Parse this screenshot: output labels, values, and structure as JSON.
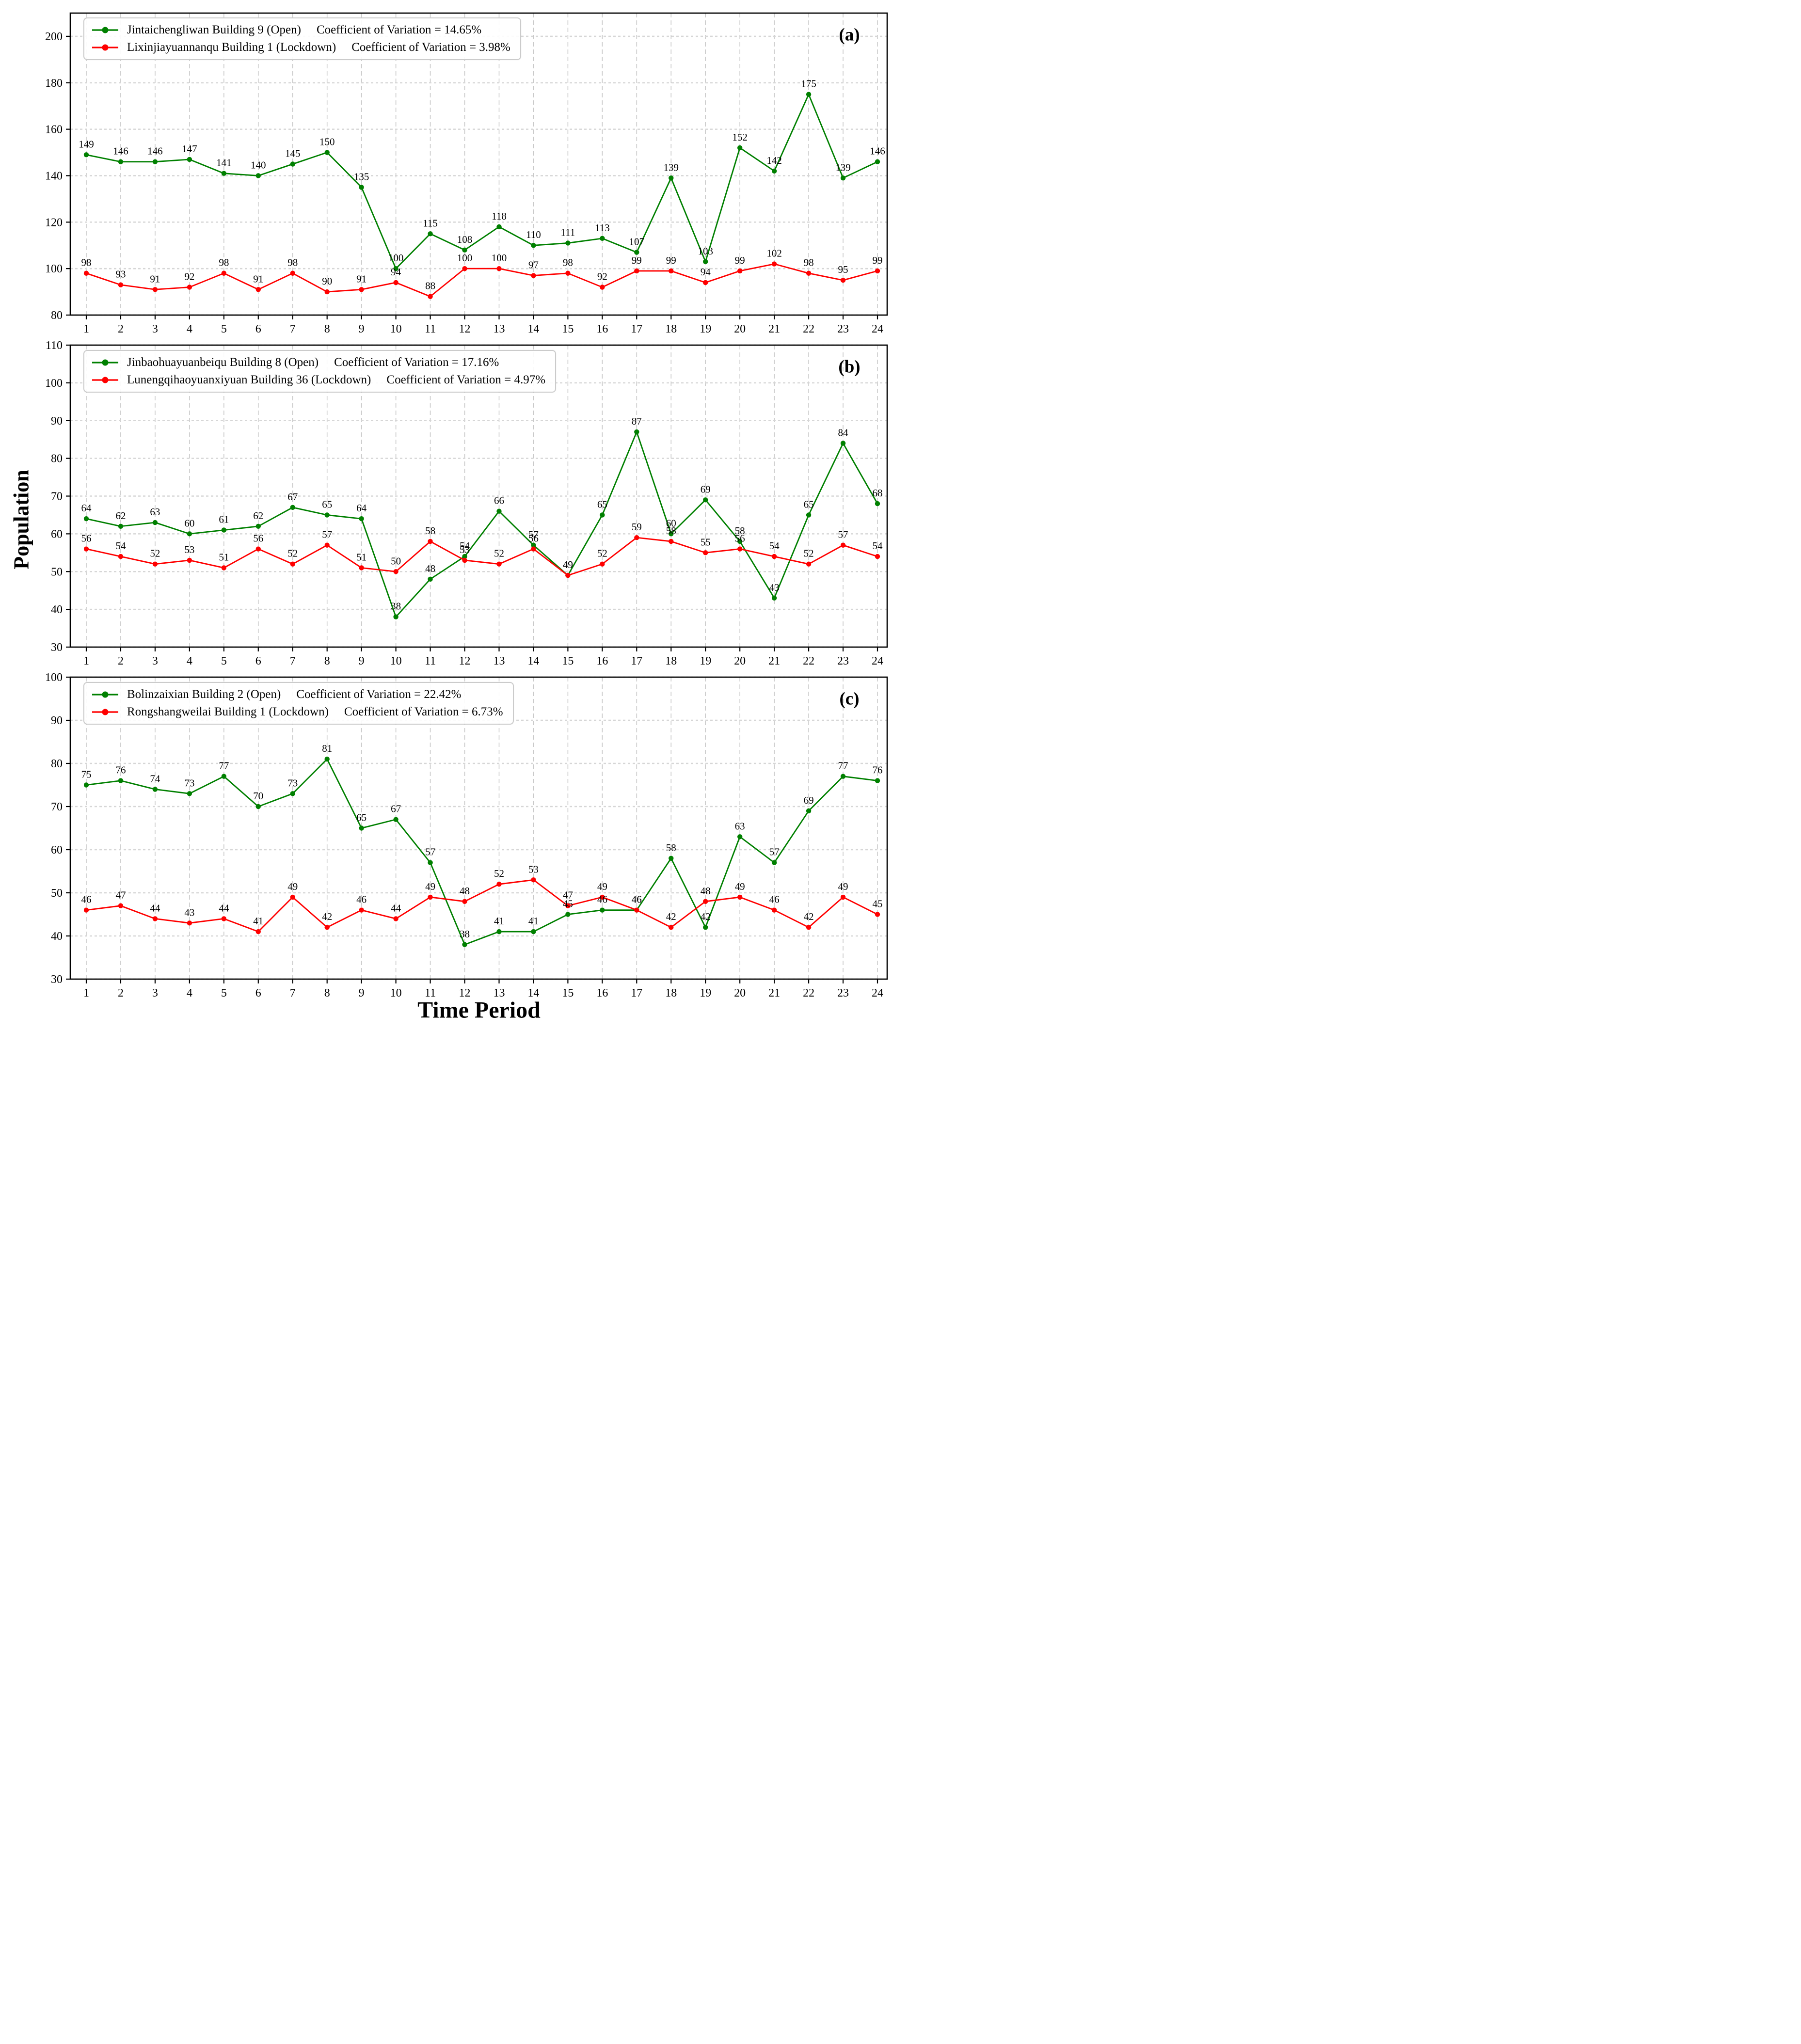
{
  "figure": {
    "ylabel": "Population",
    "xlabel": "Time Period",
    "background": "#ffffff",
    "colors": {
      "open_series": "#008000",
      "lockdown_series": "#ff0000",
      "grid_vertical": "#c9c9c9",
      "grid_horizontal": "#d6d6d6",
      "spine": "#000000",
      "text": "#000000",
      "legend_border": "#cbcbcb"
    }
  },
  "chart_data": [
    {
      "type": "line",
      "panel_label": "(a)",
      "categories": [
        "1",
        "2",
        "3",
        "4",
        "5",
        "6",
        "7",
        "8",
        "9",
        "10",
        "11",
        "12",
        "13",
        "14",
        "15",
        "16",
        "17",
        "18",
        "19",
        "20",
        "21",
        "22",
        "23",
        "24"
      ],
      "ylim": [
        80,
        210
      ],
      "yticks": [
        80,
        100,
        120,
        140,
        160,
        180,
        200
      ],
      "grid": true,
      "legend_position": "upper-left",
      "series": [
        {
          "name": "Jintaichengliwan Building 9 (Open)",
          "cv_label": "Coefficient of Variation = 14.65%",
          "color": "#008000",
          "values": [
            149,
            146,
            146,
            147,
            141,
            140,
            145,
            150,
            135,
            100,
            115,
            108,
            118,
            110,
            111,
            113,
            107,
            139,
            103,
            152,
            142,
            175,
            139,
            146
          ]
        },
        {
          "name": "Lixinjiayuannanqu Building 1 (Lockdown)",
          "cv_label": "Coefficient of Variation = 3.98%",
          "color": "#ff0000",
          "values": [
            98,
            93,
            91,
            92,
            98,
            91,
            98,
            90,
            91,
            94,
            88,
            100,
            100,
            97,
            98,
            92,
            99,
            99,
            94,
            99,
            102,
            98,
            95,
            99
          ]
        }
      ]
    },
    {
      "type": "line",
      "panel_label": "(b)",
      "categories": [
        "1",
        "2",
        "3",
        "4",
        "5",
        "6",
        "7",
        "8",
        "9",
        "10",
        "11",
        "12",
        "13",
        "14",
        "15",
        "16",
        "17",
        "18",
        "19",
        "20",
        "21",
        "22",
        "23",
        "24"
      ],
      "ylim": [
        30,
        110
      ],
      "yticks": [
        30,
        40,
        50,
        60,
        70,
        80,
        90,
        100,
        110
      ],
      "grid": true,
      "legend_position": "upper-left",
      "series": [
        {
          "name": "Jinbaohuayuanbeiqu Building 8 (Open)",
          "cv_label": "Coefficient of Variation = 17.16%",
          "color": "#008000",
          "values": [
            64,
            62,
            63,
            60,
            61,
            62,
            67,
            65,
            64,
            38,
            48,
            54,
            66,
            57,
            49,
            65,
            87,
            60,
            69,
            58,
            43,
            65,
            84,
            68
          ]
        },
        {
          "name": "Lunengqihaoyuanxiyuan Building 36 (Lockdown)",
          "cv_label": "Coefficient of Variation = 4.97%",
          "color": "#ff0000",
          "values": [
            56,
            54,
            52,
            53,
            51,
            56,
            52,
            57,
            51,
            50,
            58,
            53,
            52,
            56,
            49,
            52,
            59,
            58,
            55,
            56,
            54,
            52,
            57,
            54
          ]
        }
      ]
    },
    {
      "type": "line",
      "panel_label": "(c)",
      "categories": [
        "1",
        "2",
        "3",
        "4",
        "5",
        "6",
        "7",
        "8",
        "9",
        "10",
        "11",
        "12",
        "13",
        "14",
        "15",
        "16",
        "17",
        "18",
        "19",
        "20",
        "21",
        "22",
        "23",
        "24"
      ],
      "ylim": [
        30,
        100
      ],
      "yticks": [
        30,
        40,
        50,
        60,
        70,
        80,
        90,
        100
      ],
      "grid": true,
      "legend_position": "upper-left",
      "series": [
        {
          "name": "Bolinzaixian Building 2 (Open)",
          "cv_label": "Coefficient of Variation = 22.42%",
          "color": "#008000",
          "values": [
            75,
            76,
            74,
            73,
            77,
            70,
            73,
            81,
            65,
            67,
            57,
            38,
            41,
            41,
            45,
            46,
            46,
            58,
            42,
            63,
            57,
            69,
            77,
            76
          ]
        },
        {
          "name": "Rongshangweilai Building 1 (Lockdown)",
          "cv_label": "Coefficient of Variation = 6.73%",
          "color": "#ff0000",
          "values": [
            46,
            47,
            44,
            43,
            44,
            41,
            49,
            42,
            46,
            44,
            49,
            48,
            52,
            53,
            47,
            49,
            46,
            42,
            48,
            49,
            46,
            42,
            49,
            45
          ]
        }
      ]
    }
  ]
}
